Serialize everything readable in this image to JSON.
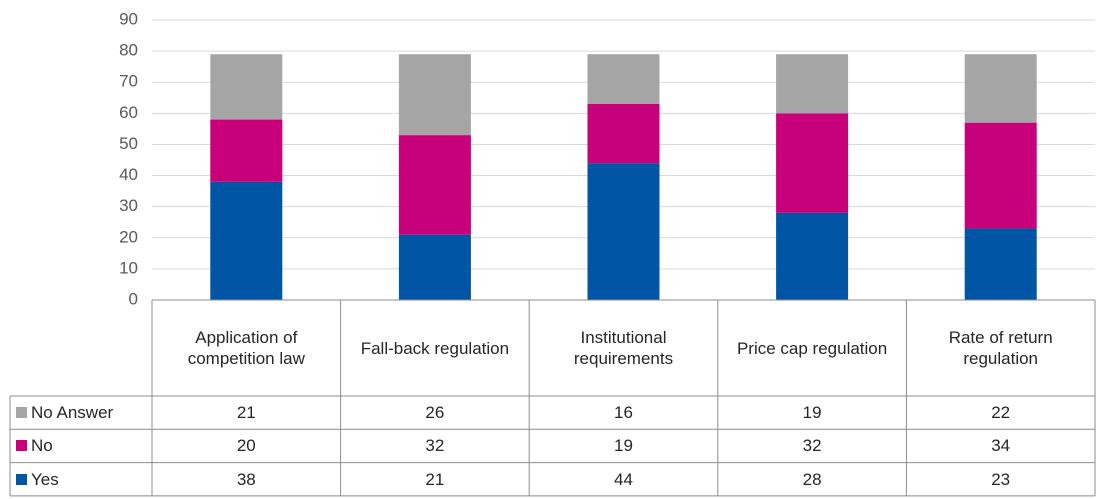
{
  "chart_data": {
    "type": "stacked_bar",
    "categories": [
      "Application of competition law",
      "Fall-back regulation",
      "Institutional requirements",
      "Price cap regulation",
      "Rate of return regulation"
    ],
    "series": [
      {
        "name": "No Answer",
        "color": "#a5a5a5",
        "values": [
          21,
          26,
          16,
          19,
          22
        ]
      },
      {
        "name": "No",
        "color": "#c8007a",
        "values": [
          20,
          32,
          19,
          32,
          34
        ]
      },
      {
        "name": "Yes",
        "color": "#0055a5",
        "values": [
          38,
          21,
          44,
          28,
          23
        ]
      }
    ],
    "ylim": [
      0,
      90
    ],
    "yticks": [
      0,
      10,
      20,
      30,
      40,
      50,
      60,
      70,
      80,
      90
    ],
    "grid": true,
    "data_table": true
  }
}
